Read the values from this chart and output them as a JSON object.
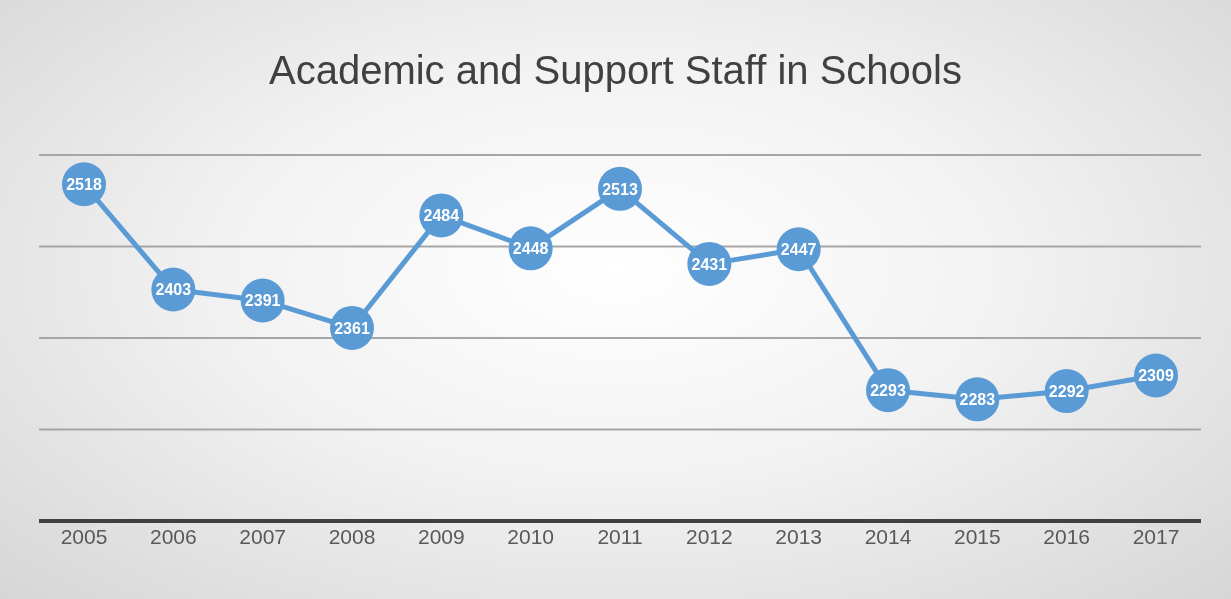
{
  "chart_data": {
    "type": "line",
    "title": "Academic and Support Staff in Schools",
    "categories": [
      "2005",
      "2006",
      "2007",
      "2008",
      "2009",
      "2010",
      "2011",
      "2012",
      "2013",
      "2014",
      "2015",
      "2016",
      "2017"
    ],
    "series": [
      {
        "color": "#5b9bd5",
        "values": [
          2518,
          2403,
          2391,
          2361,
          2484,
          2448,
          2513,
          2431,
          2447,
          2293,
          2283,
          2292,
          2309
        ]
      }
    ],
    "ylim": [
      2150,
      2550
    ],
    "tick_labels": "x",
    "grid": "y",
    "data_labels": true,
    "marker": "circle",
    "line_style": "solid",
    "legend": false
  }
}
